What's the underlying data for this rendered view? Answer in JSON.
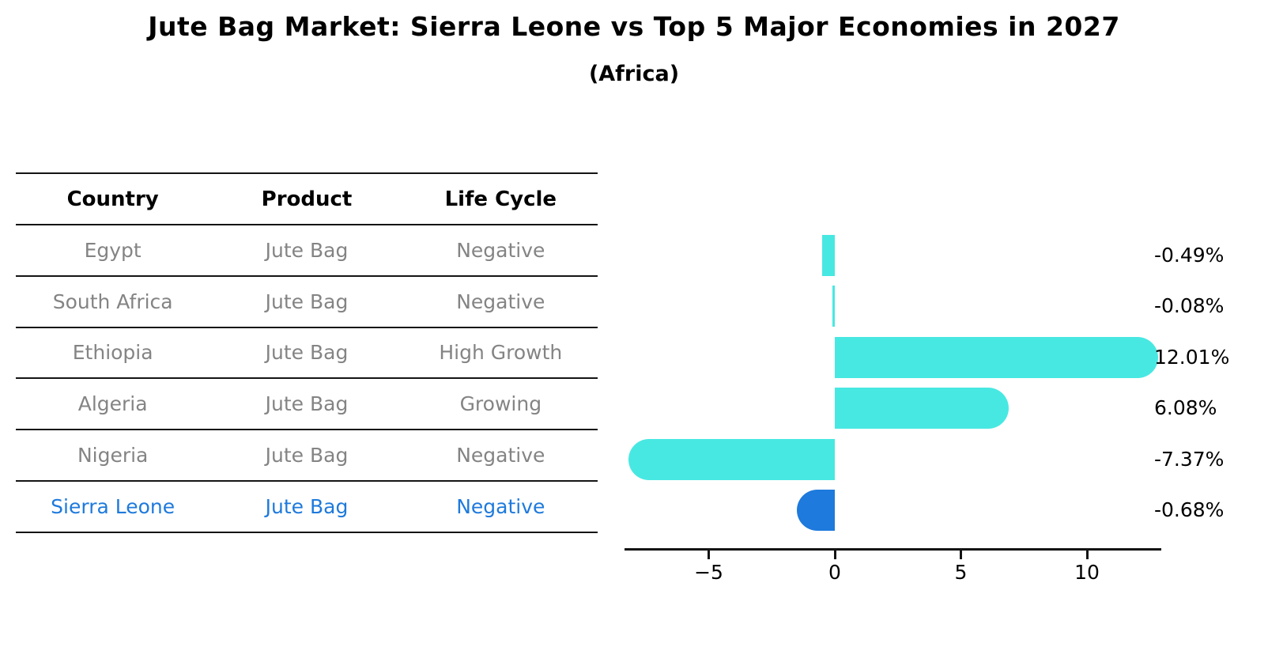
{
  "title": "Jute Bag Market: Sierra Leone vs Top 5 Major Economies in 2027",
  "subtitle": "(Africa)",
  "table": {
    "headers": {
      "country": "Country",
      "product": "Product",
      "life_cycle": "Life Cycle"
    },
    "rows": [
      {
        "country": "Egypt",
        "product": "Jute Bag",
        "life_cycle": "Negative",
        "highlight": false
      },
      {
        "country": "South Africa",
        "product": "Jute Bag",
        "life_cycle": "Negative",
        "highlight": false
      },
      {
        "country": "Ethiopia",
        "product": "Jute Bag",
        "life_cycle": "High Growth",
        "highlight": false
      },
      {
        "country": "Algeria",
        "product": "Jute Bag",
        "life_cycle": "Growing",
        "highlight": false
      },
      {
        "country": "Nigeria",
        "product": "Jute Bag",
        "life_cycle": "Negative",
        "highlight": false
      },
      {
        "country": "Sierra Leone",
        "product": "Jute Bag",
        "life_cycle": "Negative",
        "highlight": true
      }
    ]
  },
  "chart_data": {
    "type": "bar",
    "orientation": "horizontal",
    "title": "Jute Bag Market: Sierra Leone vs Top 5 Major Economies in 2027 (Africa)",
    "categories": [
      "Egypt",
      "South Africa",
      "Ethiopia",
      "Algeria",
      "Nigeria",
      "Sierra Leone"
    ],
    "values": [
      -0.49,
      -0.08,
      12.01,
      6.08,
      -7.37,
      -0.68
    ],
    "value_labels": [
      "-0.49%",
      "-0.08%",
      "12.01%",
      "6.08%",
      "-7.37%",
      "-0.68%"
    ],
    "highlight_category": "Sierra Leone",
    "x_ticks": [
      -5,
      0,
      5,
      10
    ],
    "x_tick_labels": [
      "−5",
      "0",
      "5",
      "10"
    ],
    "xlim": [
      -8.4,
      13.0
    ],
    "grid": false,
    "legend": false,
    "bar_color": "#48E8E2",
    "highlight_color": "#1E7ADC",
    "axis_color": "#141414"
  }
}
